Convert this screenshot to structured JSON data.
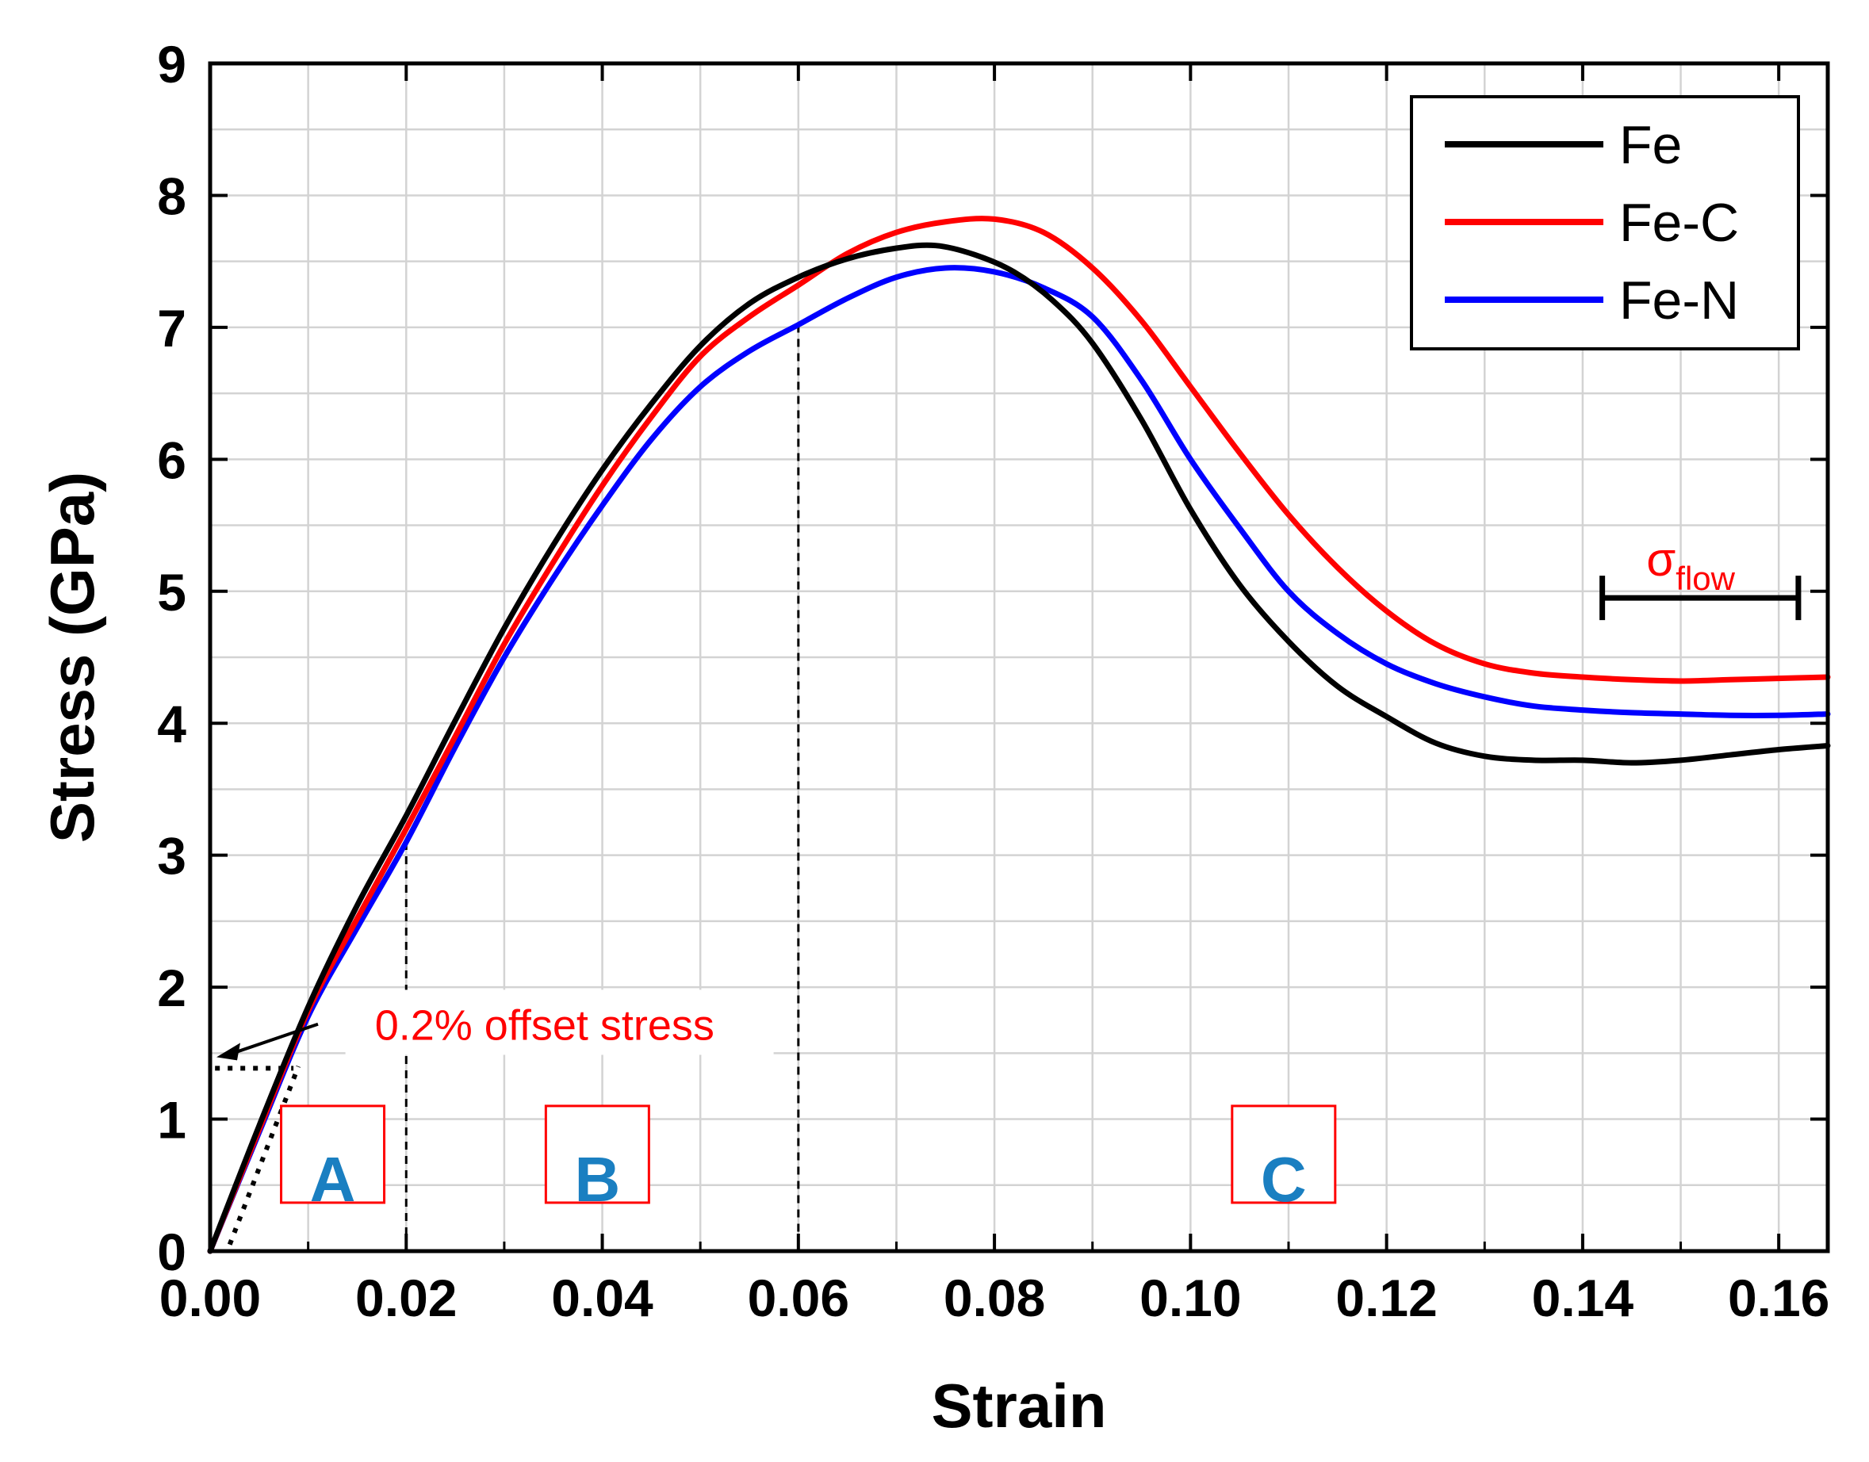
{
  "chart_data": {
    "type": "line",
    "xlabel": "Strain",
    "ylabel": "Stress (GPa)",
    "xlim": [
      0,
      0.165
    ],
    "ylim": [
      0,
      9
    ],
    "x_ticks": [
      0.0,
      0.02,
      0.04,
      0.06,
      0.08,
      0.1,
      0.12,
      0.14,
      0.16
    ],
    "x_tick_labels": [
      "0.00",
      "0.02",
      "0.04",
      "0.06",
      "0.08",
      "0.10",
      "0.12",
      "0.14",
      "0.16"
    ],
    "y_ticks": [
      0,
      1,
      2,
      3,
      4,
      5,
      6,
      7,
      8,
      9
    ],
    "y_tick_labels": [
      "0",
      "1",
      "2",
      "3",
      "4",
      "5",
      "6",
      "7",
      "8",
      "9"
    ],
    "grid": true,
    "legend_position": "top-right",
    "series": [
      {
        "name": "Fe",
        "color": "#000000",
        "x": [
          0,
          0.005,
          0.01,
          0.015,
          0.02,
          0.025,
          0.03,
          0.035,
          0.04,
          0.045,
          0.05,
          0.055,
          0.06,
          0.065,
          0.07,
          0.074,
          0.078,
          0.082,
          0.086,
          0.09,
          0.095,
          0.1,
          0.105,
          0.11,
          0.115,
          0.12,
          0.125,
          0.13,
          0.135,
          0.14,
          0.145,
          0.15,
          0.155,
          0.16,
          0.165
        ],
        "y": [
          0,
          0.95,
          1.85,
          2.62,
          3.3,
          4.02,
          4.72,
          5.35,
          5.92,
          6.42,
          6.86,
          7.18,
          7.38,
          7.52,
          7.6,
          7.62,
          7.55,
          7.42,
          7.2,
          6.88,
          6.3,
          5.62,
          5.05,
          4.62,
          4.28,
          4.05,
          3.85,
          3.75,
          3.72,
          3.72,
          3.7,
          3.72,
          3.76,
          3.8,
          3.83
        ]
      },
      {
        "name": "Fe-C",
        "color": "#ff0000",
        "x": [
          0,
          0.005,
          0.01,
          0.015,
          0.02,
          0.025,
          0.03,
          0.035,
          0.04,
          0.045,
          0.05,
          0.055,
          0.06,
          0.065,
          0.07,
          0.075,
          0.08,
          0.085,
          0.09,
          0.095,
          0.1,
          0.105,
          0.11,
          0.115,
          0.12,
          0.125,
          0.13,
          0.135,
          0.14,
          0.145,
          0.15,
          0.155,
          0.16,
          0.165
        ],
        "y": [
          0,
          0.92,
          1.82,
          2.52,
          3.2,
          3.9,
          4.6,
          5.22,
          5.8,
          6.32,
          6.78,
          7.08,
          7.32,
          7.56,
          7.72,
          7.8,
          7.82,
          7.72,
          7.45,
          7.05,
          6.55,
          6.05,
          5.58,
          5.18,
          4.85,
          4.6,
          4.45,
          4.38,
          4.35,
          4.33,
          4.32,
          4.33,
          4.34,
          4.35
        ]
      },
      {
        "name": "Fe-N",
        "color": "#0000ff",
        "x": [
          0,
          0.005,
          0.01,
          0.015,
          0.02,
          0.025,
          0.03,
          0.035,
          0.04,
          0.045,
          0.05,
          0.055,
          0.06,
          0.065,
          0.07,
          0.075,
          0.08,
          0.085,
          0.09,
          0.095,
          0.1,
          0.105,
          0.11,
          0.115,
          0.12,
          0.125,
          0.13,
          0.135,
          0.14,
          0.145,
          0.15,
          0.155,
          0.16,
          0.165
        ],
        "y": [
          0,
          0.9,
          1.78,
          2.45,
          3.1,
          3.82,
          4.5,
          5.1,
          5.65,
          6.15,
          6.55,
          6.82,
          7.02,
          7.22,
          7.38,
          7.45,
          7.42,
          7.3,
          7.08,
          6.6,
          6.0,
          5.48,
          5.0,
          4.68,
          4.45,
          4.3,
          4.2,
          4.13,
          4.1,
          4.08,
          4.07,
          4.06,
          4.06,
          4.07
        ]
      }
    ],
    "annotations": {
      "offset_label": "0.2% offset stress",
      "offset_stress_value": 1.47,
      "offset_line_strain": [
        0.002,
        0.009
      ],
      "dashed_lines_at_strain": [
        0.02,
        0.06
      ],
      "regions": [
        "A",
        "B",
        "C"
      ],
      "sigma_symbol": "σ",
      "sigma_subscript": "flow",
      "flow_range_strain": [
        0.142,
        0.162
      ],
      "flow_bar_stress": 4.95
    }
  },
  "colors": {
    "annotation_red": "#ff0000",
    "region_blue": "#1a7fc1",
    "grid": "#d3d3d3"
  }
}
